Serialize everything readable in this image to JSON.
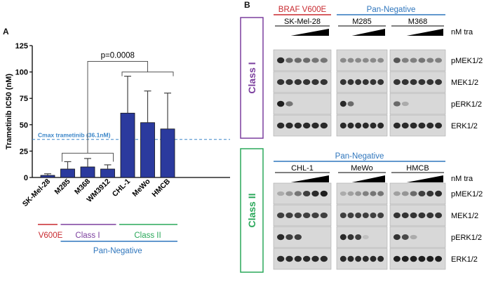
{
  "panel_a": {
    "label": "A",
    "stat": "p=0.0008",
    "cmax_label": "Cmax trametinib (36.1nM)",
    "cmax_color": "#3b86c9",
    "bar_color": "#2b3a9e",
    "groups": {
      "v600e": {
        "label": "V600E",
        "color": "#c8282e"
      },
      "class1": {
        "label": "Class I",
        "color": "#7b3f9e"
      },
      "class2": {
        "label": "Class II",
        "color": "#2aa85a"
      },
      "pan": {
        "label": "Pan-Negative",
        "color": "#2f76bd"
      }
    }
  },
  "chart_data": {
    "type": "bar",
    "ylabel": "Trametinib IC50 (nM)",
    "xlabel": "",
    "ylim": [
      0,
      125
    ],
    "yticks": [
      0,
      25,
      50,
      75,
      100,
      125
    ],
    "categories": [
      "SK-Mel-28",
      "M285",
      "M368",
      "WM3912",
      "CHL-1",
      "MeWo",
      "HMCB"
    ],
    "values": [
      2,
      8,
      10,
      8,
      61,
      52,
      46
    ],
    "errors": [
      1.5,
      7,
      8,
      4,
      35,
      30,
      34
    ],
    "cmax": 36.1,
    "grid": false
  },
  "panel_b": {
    "label": "B",
    "class1": {
      "label": "Class I",
      "color": "#7b3f9e",
      "headers": [
        {
          "text": "BRAF V600E",
          "color": "#c8282e"
        },
        {
          "text": "Pan-Negative",
          "color": "#2f76bd"
        }
      ],
      "cells": [
        "SK-Mel-28",
        "M285",
        "M368"
      ]
    },
    "class2": {
      "label": "Class II",
      "color": "#2aa85a",
      "headers": [
        {
          "text": "Pan-Negative",
          "color": "#2f76bd"
        }
      ],
      "cells": [
        "CHL-1",
        "MeWo",
        "HMCB"
      ]
    },
    "conc_label": "nM tra",
    "proteins": [
      "pMEK1/2",
      "MEK1/2",
      "pERK1/2",
      "ERK1/2"
    ]
  }
}
